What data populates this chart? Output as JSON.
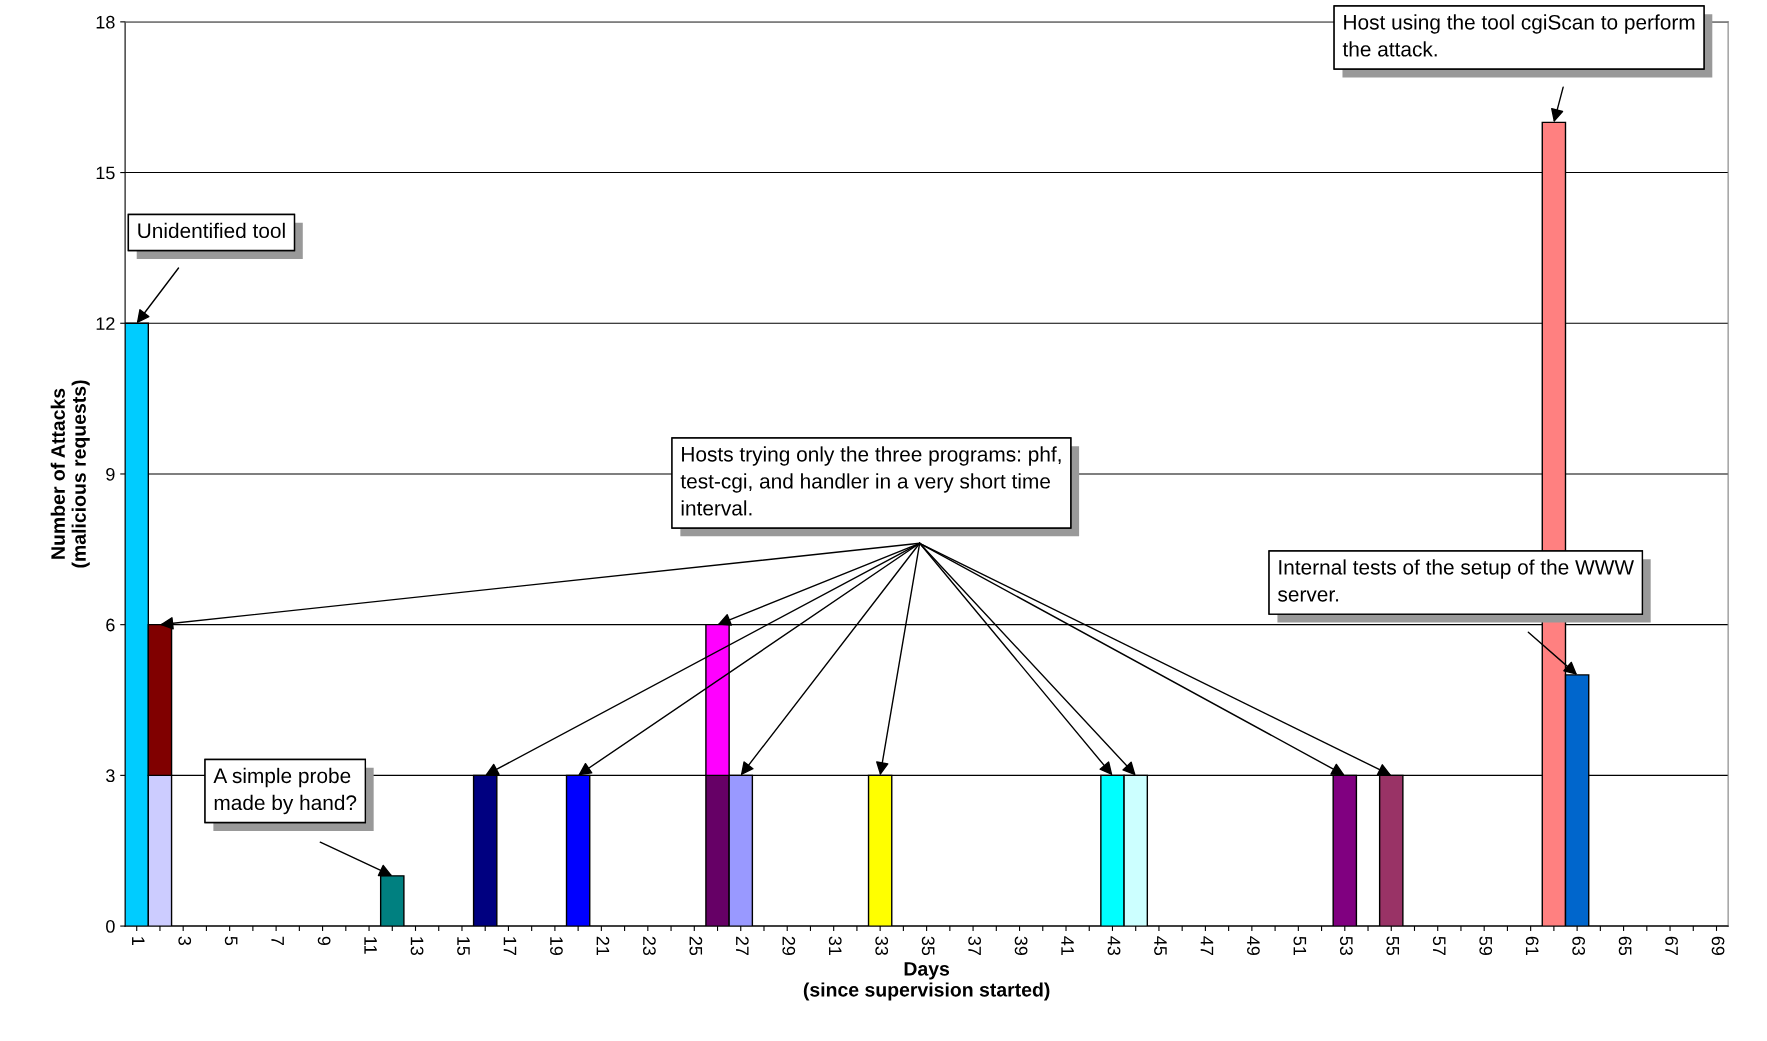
{
  "chart_data": {
    "type": "bar",
    "stacked": true,
    "xlabel": "Days\n(since supervision started)",
    "ylabel": "Number of Attacks\n(malicious requests)",
    "categories": [
      "1",
      null,
      "3",
      null,
      "5",
      null,
      "7",
      null,
      "9",
      null,
      "11",
      null,
      "13",
      null,
      "15",
      null,
      "17",
      null,
      "19",
      null,
      "21",
      null,
      "23",
      null,
      "25",
      null,
      "27",
      null,
      "29",
      null,
      "31",
      null,
      "33",
      null,
      "35",
      null,
      "37",
      null,
      "39",
      null,
      "41",
      null,
      "43",
      null,
      "45",
      null,
      "47",
      null,
      "49",
      null,
      "51",
      null,
      "53",
      null,
      "55",
      null,
      "57",
      null,
      "59",
      null,
      "61",
      null,
      "63",
      null,
      "65",
      null,
      "67",
      null,
      "69"
    ],
    "series": [
      {
        "values": [
          12,
          3,
          null,
          null,
          null,
          null,
          null,
          null,
          null,
          null,
          null,
          1,
          null,
          null,
          null,
          3,
          null,
          null,
          null,
          3,
          null,
          null,
          null,
          null,
          null,
          3,
          3,
          null,
          null,
          null,
          null,
          null,
          3,
          null,
          null,
          null,
          null,
          null,
          null,
          null,
          null,
          null,
          3,
          3,
          null,
          null,
          null,
          null,
          null,
          null,
          null,
          null,
          3,
          null,
          3,
          null,
          null,
          null,
          null,
          null,
          null,
          16,
          5,
          null,
          null,
          null,
          null,
          null,
          null
        ],
        "colors": [
          "#00ccff",
          "#ccccff",
          null,
          null,
          null,
          null,
          null,
          null,
          null,
          null,
          null,
          "#008080",
          null,
          null,
          null,
          "#000080",
          null,
          null,
          null,
          "#0000ff",
          null,
          null,
          null,
          null,
          null,
          "#660066",
          "#9999ff",
          null,
          null,
          null,
          null,
          null,
          "#ffff00",
          null,
          null,
          null,
          null,
          null,
          null,
          null,
          null,
          null,
          "#00ffff",
          "#ccffff",
          null,
          null,
          null,
          null,
          null,
          null,
          null,
          null,
          "#800080",
          null,
          "#993366",
          null,
          null,
          null,
          null,
          null,
          null,
          "#ff8080",
          "#0066cc",
          null,
          null,
          null,
          null,
          null,
          null
        ]
      },
      {
        "values": [
          null,
          3,
          null,
          null,
          null,
          null,
          null,
          null,
          null,
          null,
          null,
          null,
          null,
          null,
          null,
          null,
          null,
          null,
          null,
          null,
          null,
          null,
          null,
          null,
          null,
          3,
          null,
          null,
          null,
          null,
          null,
          null,
          null,
          null,
          null,
          null,
          null,
          null,
          null,
          null,
          null,
          null,
          null,
          null,
          null,
          null,
          null,
          null,
          null,
          null,
          null,
          null,
          null,
          null,
          null,
          null,
          null,
          null,
          null,
          null,
          null,
          null,
          null,
          null,
          null,
          null,
          null,
          null,
          null
        ],
        "colors": [
          null,
          "#800000",
          null,
          null,
          null,
          null,
          null,
          null,
          null,
          null,
          null,
          null,
          null,
          null,
          null,
          null,
          null,
          null,
          null,
          null,
          null,
          null,
          null,
          null,
          null,
          "#ff00ff",
          null,
          null,
          null,
          null,
          null,
          null,
          null,
          null,
          null,
          null,
          null,
          null,
          null,
          null,
          null,
          null,
          null,
          null,
          null,
          null,
          null,
          null,
          null,
          null,
          null,
          null,
          null,
          null,
          null,
          null,
          null,
          null,
          null,
          null,
          null,
          null,
          null,
          null,
          null,
          null,
          null,
          null,
          null
        ]
      }
    ],
    "ylim": [
      0,
      18
    ],
    "yticks": [
      0,
      3,
      6,
      9,
      12,
      15,
      18
    ],
    "grid": "y",
    "annotations": [
      "Unidentified tool",
      "A simple probe\nmade by hand?",
      "Hosts trying only the three programs: phf,\ntest-cgi, and handler in a very short time\ninterval.",
      "Host using the tool cgiScan to perform\nthe attack.",
      "Internal tests of the setup of the WWW\nserver."
    ]
  }
}
